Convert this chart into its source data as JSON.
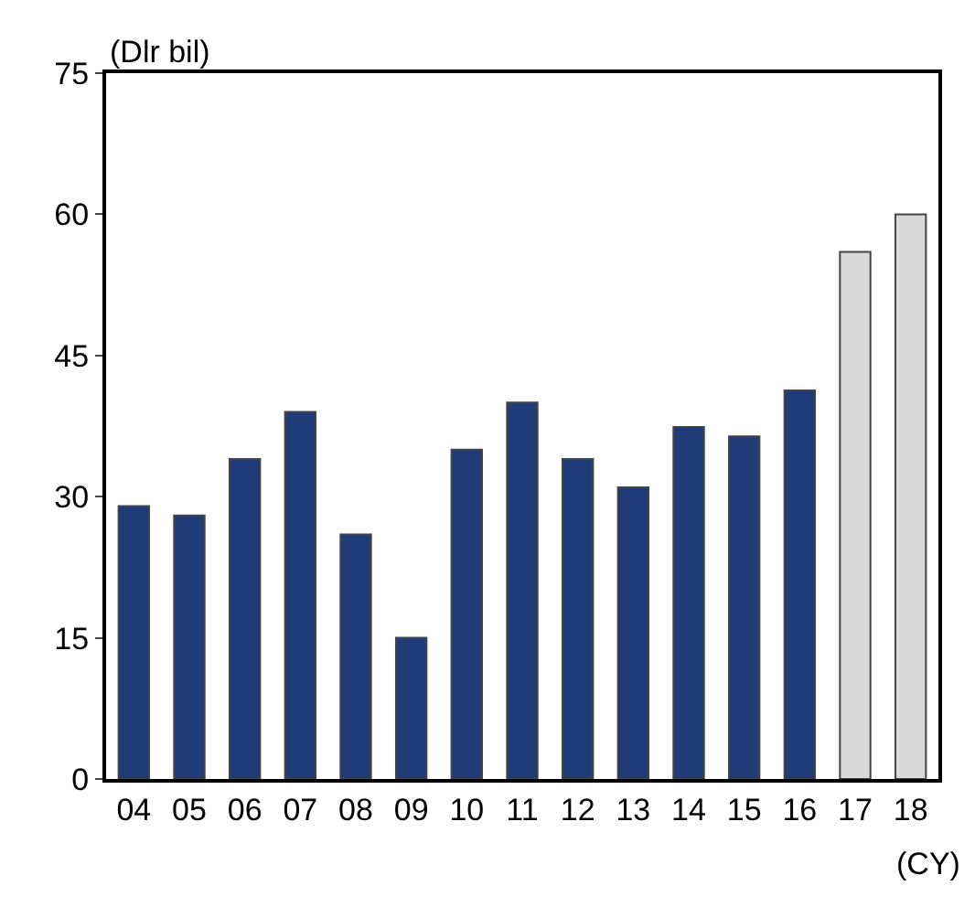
{
  "chart_data": {
    "type": "bar",
    "ylabel": "(Dlr bil)",
    "xlabel": "(CY)",
    "categories": [
      "04",
      "05",
      "06",
      "07",
      "08",
      "09",
      "10",
      "11",
      "12",
      "13",
      "14",
      "15",
      "16",
      "17",
      "18"
    ],
    "series": [
      {
        "color": "#1f3c78",
        "values": [
          29,
          28,
          34,
          39,
          26,
          15,
          35,
          40,
          34,
          31,
          37.4,
          36.4,
          41.3,
          null,
          null
        ]
      },
      {
        "color": "#d9d9d9",
        "values": [
          null,
          null,
          null,
          null,
          null,
          null,
          null,
          null,
          null,
          null,
          null,
          null,
          null,
          56,
          60
        ]
      }
    ],
    "ylim": [
      0,
      75
    ],
    "yticks": [
      0,
      15,
      30,
      45,
      60,
      75
    ]
  }
}
